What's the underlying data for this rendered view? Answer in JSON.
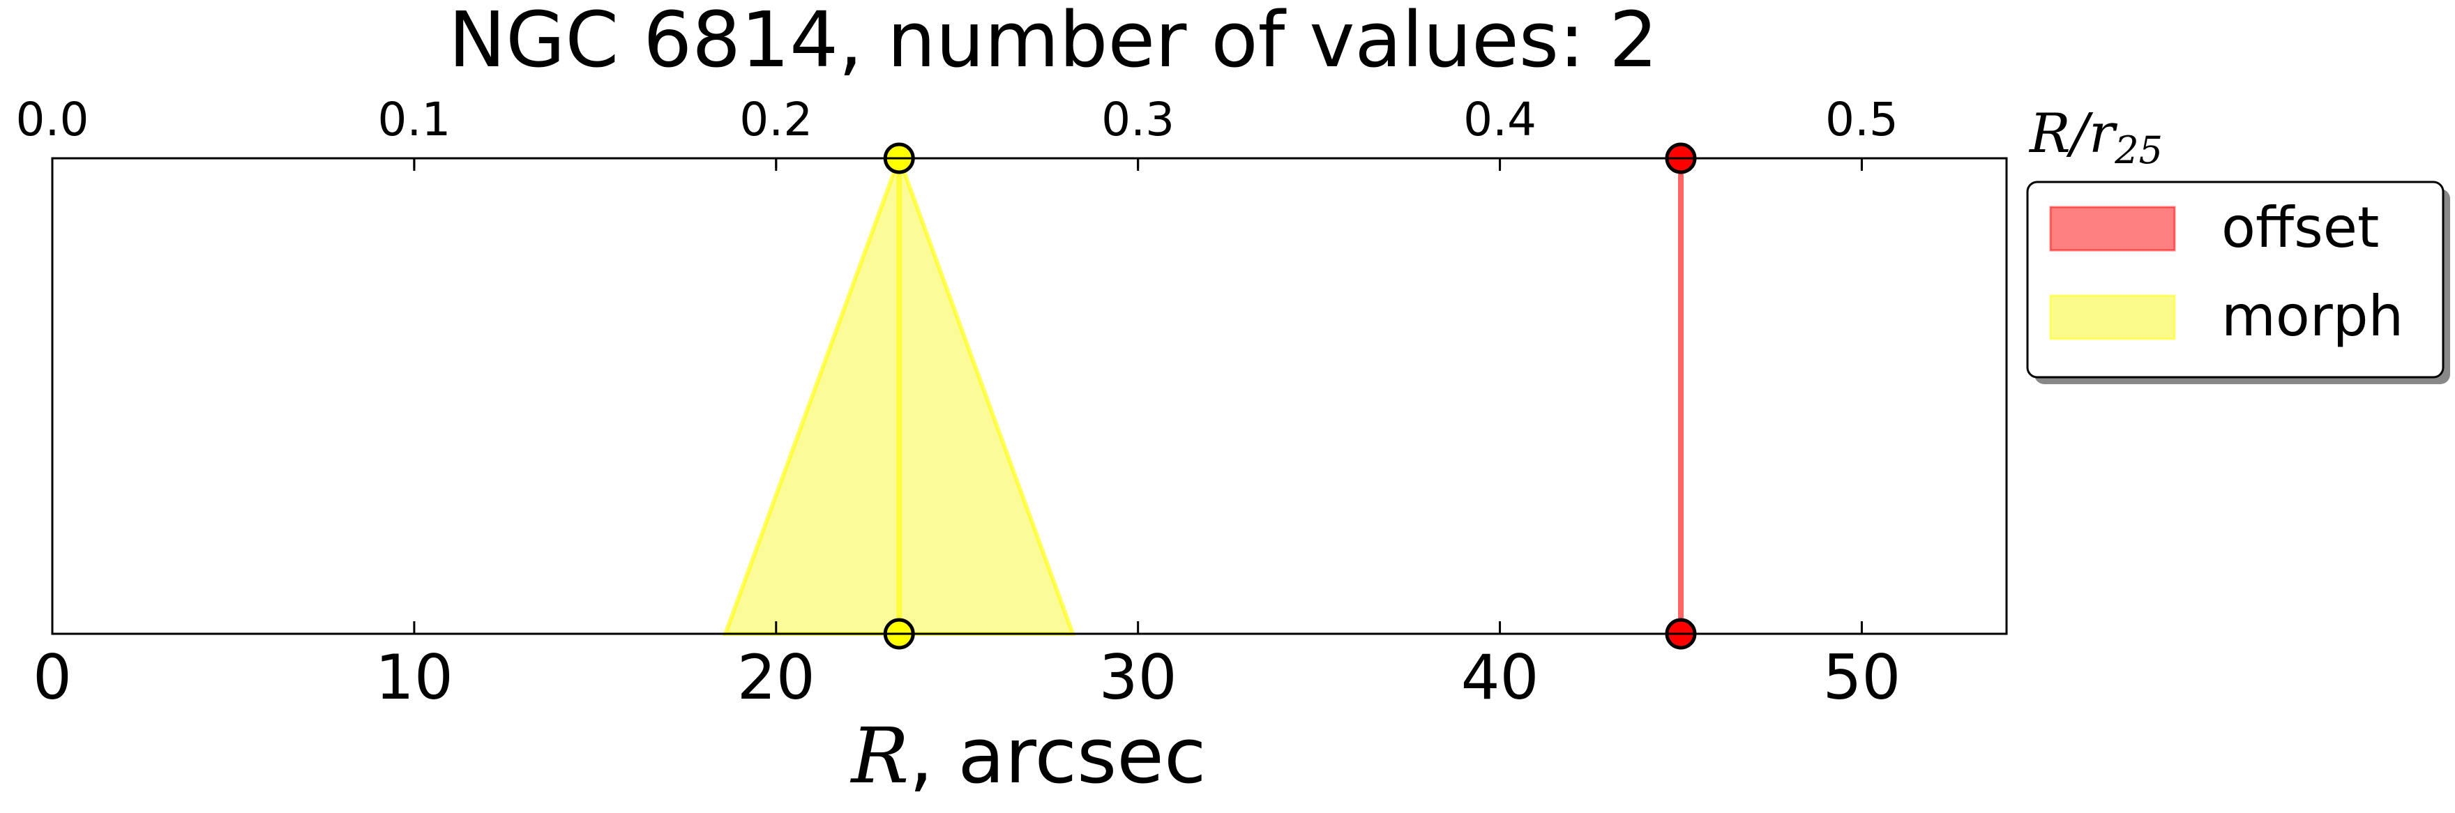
{
  "chart_data": {
    "type": "scatter",
    "title": "NGC 6814, number of values: 2",
    "xlabel_var": "R",
    "xlabel_unit": ", arcsec",
    "top_axis_label_base": "R/r",
    "top_axis_label_sub": "25",
    "xlim": [
      0,
      54
    ],
    "x_ticks": [
      0,
      10,
      20,
      30,
      40,
      50
    ],
    "top_xlim": [
      0.0,
      0.54
    ],
    "top_x_ticks": [
      "0.0",
      "0.1",
      "0.2",
      "0.3",
      "0.4",
      "0.5"
    ],
    "top_x_tick_values": [
      0.0,
      0.1,
      0.2,
      0.3,
      0.4,
      0.5
    ],
    "grid": false,
    "legend_position": "outside-right-top",
    "series": [
      {
        "name": "offset",
        "color": "#ff0000",
        "fill_color": "#ff8080",
        "x": 45.0,
        "band_bottom": [
          45.0,
          45.0
        ]
      },
      {
        "name": "morph",
        "color": "#ffff00",
        "fill_color": "#fbfb8c",
        "x": 23.4,
        "band_bottom": [
          18.6,
          28.2
        ]
      }
    ]
  }
}
